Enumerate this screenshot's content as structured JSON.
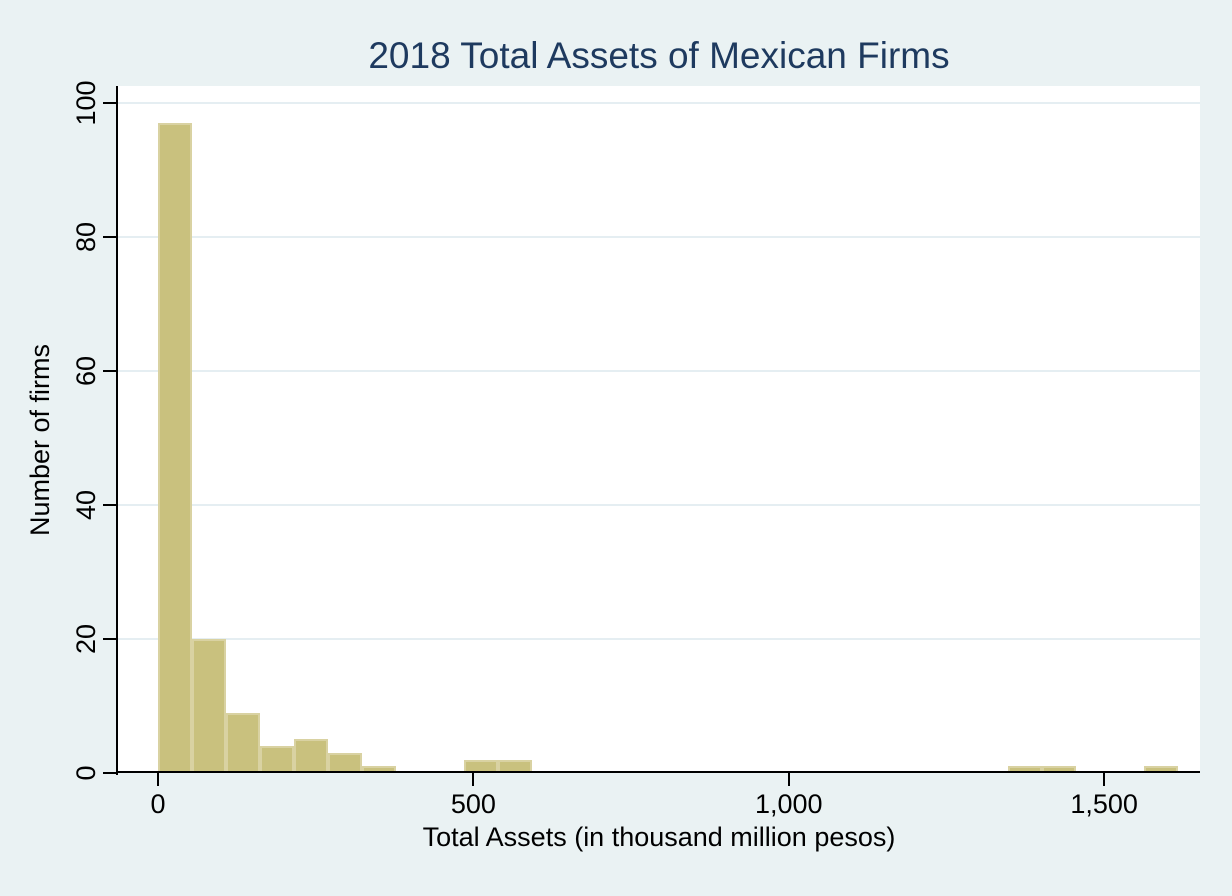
{
  "title": {
    "text": "2018 Total Assets of Mexican Firms",
    "color": "#1e3a5f"
  },
  "colors": {
    "figure_background": "#eaf2f3",
    "plot_background": "#ffffff",
    "gridline": "#e5eef2",
    "axis_line": "#000000",
    "tick_mark": "#000000",
    "bar_fill": "#c9c17e",
    "bar_border": "#d9d2a2"
  },
  "chart_data": {
    "type": "bar",
    "subtype": "histogram",
    "title": "2018 Total Assets of Mexican Firms",
    "xlabel": "Total Assets (in thousand million pesos)",
    "ylabel": "Number of firms",
    "bin_start": 0,
    "bin_width": 53.9,
    "counts_per_bin": [
      97,
      20,
      9,
      4,
      5,
      3,
      1,
      0,
      0,
      2,
      2,
      0,
      0,
      0,
      0,
      0,
      0,
      0,
      0,
      0,
      0,
      0,
      0,
      0,
      0,
      1,
      1,
      0,
      0,
      1
    ],
    "nonzero_bins": [
      {
        "x_from": 0,
        "x_to": 54,
        "count": 97
      },
      {
        "x_from": 54,
        "x_to": 108,
        "count": 20
      },
      {
        "x_from": 108,
        "x_to": 162,
        "count": 9
      },
      {
        "x_from": 162,
        "x_to": 216,
        "count": 4
      },
      {
        "x_from": 216,
        "x_to": 270,
        "count": 5
      },
      {
        "x_from": 270,
        "x_to": 323,
        "count": 3
      },
      {
        "x_from": 323,
        "x_to": 377,
        "count": 1
      },
      {
        "x_from": 485,
        "x_to": 539,
        "count": 2
      },
      {
        "x_from": 539,
        "x_to": 593,
        "count": 2
      },
      {
        "x_from": 1348,
        "x_to": 1401,
        "count": 1
      },
      {
        "x_from": 1401,
        "x_to": 1455,
        "count": 1
      },
      {
        "x_from": 1563,
        "x_to": 1617,
        "count": 1
      }
    ],
    "total_firms": 146,
    "x_ticks": {
      "values": [
        0,
        500,
        1000,
        1500
      ],
      "labels": [
        "0",
        "500",
        "1,000",
        "1,500"
      ]
    },
    "y_ticks": {
      "values": [
        0,
        20,
        40,
        60,
        80,
        100
      ],
      "labels": [
        "0",
        "20",
        "40",
        "60",
        "80",
        "100"
      ]
    },
    "xlim": [
      -63.4,
      1652
    ],
    "ylim": [
      0,
      102.5
    ],
    "grid": "horizontal gridlines at y ticks",
    "legend": "none"
  }
}
